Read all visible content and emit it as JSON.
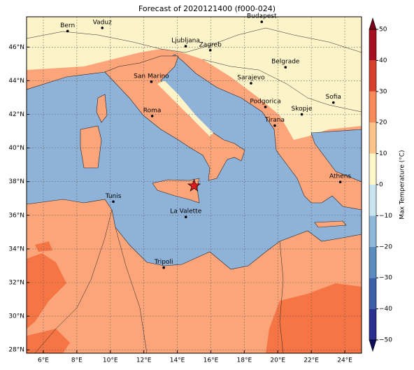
{
  "chart_data": {
    "type": "map",
    "title": "Forecast of 2020121400 (f000-024)",
    "xlim": [
      5.0,
      25.0
    ],
    "ylim": [
      27.8,
      47.8
    ],
    "xticks": [
      {
        "value": 6,
        "label": "6°E"
      },
      {
        "value": 8,
        "label": "8°E"
      },
      {
        "value": 10,
        "label": "10°E"
      },
      {
        "value": 12,
        "label": "12°E"
      },
      {
        "value": 14,
        "label": "14°E"
      },
      {
        "value": 16,
        "label": "16°E"
      },
      {
        "value": 18,
        "label": "18°E"
      },
      {
        "value": 20,
        "label": "20°E"
      },
      {
        "value": 22,
        "label": "22°E"
      },
      {
        "value": 24,
        "label": "24°E"
      }
    ],
    "yticks": [
      {
        "value": 28,
        "label": "28°N"
      },
      {
        "value": 30,
        "label": "30°N"
      },
      {
        "value": 32,
        "label": "32°N"
      },
      {
        "value": 34,
        "label": "34°N"
      },
      {
        "value": 36,
        "label": "36°N"
      },
      {
        "value": 38,
        "label": "38°N"
      },
      {
        "value": 40,
        "label": "40°N"
      },
      {
        "value": 42,
        "label": "42°N"
      },
      {
        "value": 44,
        "label": "44°N"
      },
      {
        "value": 46,
        "label": "46°N"
      }
    ],
    "grid": true,
    "cities": [
      {
        "name": "Bern",
        "lon": 7.45,
        "lat": 46.95
      },
      {
        "name": "Vaduz",
        "lon": 9.52,
        "lat": 47.14
      },
      {
        "name": "Budapest",
        "lon": 19.04,
        "lat": 47.5
      },
      {
        "name": "Ljubljana",
        "lon": 14.5,
        "lat": 46.05
      },
      {
        "name": "Zagreb",
        "lon": 15.97,
        "lat": 45.81
      },
      {
        "name": "Belgrade",
        "lon": 20.46,
        "lat": 44.8
      },
      {
        "name": "San Marino",
        "lon": 12.45,
        "lat": 43.94
      },
      {
        "name": "Sarajevo",
        "lon": 18.4,
        "lat": 43.85
      },
      {
        "name": "Roma",
        "lon": 12.5,
        "lat": 41.9
      },
      {
        "name": "Podgorica",
        "lon": 19.26,
        "lat": 42.44
      },
      {
        "name": "Skopje",
        "lon": 21.43,
        "lat": 42.0
      },
      {
        "name": "Sofia",
        "lon": 23.32,
        "lat": 42.7
      },
      {
        "name": "Tirana",
        "lon": 19.82,
        "lat": 41.33
      },
      {
        "name": "Athens",
        "lon": 23.73,
        "lat": 37.98
      },
      {
        "name": "Tunis",
        "lon": 10.18,
        "lat": 36.81
      },
      {
        "name": "La Valette",
        "lon": 14.51,
        "lat": 35.9
      },
      {
        "name": "Tripoli",
        "lon": 13.19,
        "lat": 32.89
      }
    ],
    "marker": {
      "lon": 15.0,
      "lat": 37.75,
      "color": "#e31a1c"
    },
    "colorbar": {
      "label": "Max Temperature (°C)",
      "ticks": [
        {
          "value": -50,
          "label": "−50"
        },
        {
          "value": -40,
          "label": "−40"
        },
        {
          "value": -30,
          "label": "−30"
        },
        {
          "value": -20,
          "label": "−20"
        },
        {
          "value": -10,
          "label": "−10"
        },
        0,
        10,
        20,
        30,
        40,
        50
      ],
      "colors": [
        "#2b2f8f",
        "#3b5fa8",
        "#5a8cc0",
        "#8fb8d8",
        "#c9e6f0",
        "#fdf6c8",
        "#fdc58c",
        "#f88a5a",
        "#d9402b",
        "#a50f20"
      ],
      "under_color": "#0c0c5e",
      "over_color": "#7a0018"
    }
  }
}
